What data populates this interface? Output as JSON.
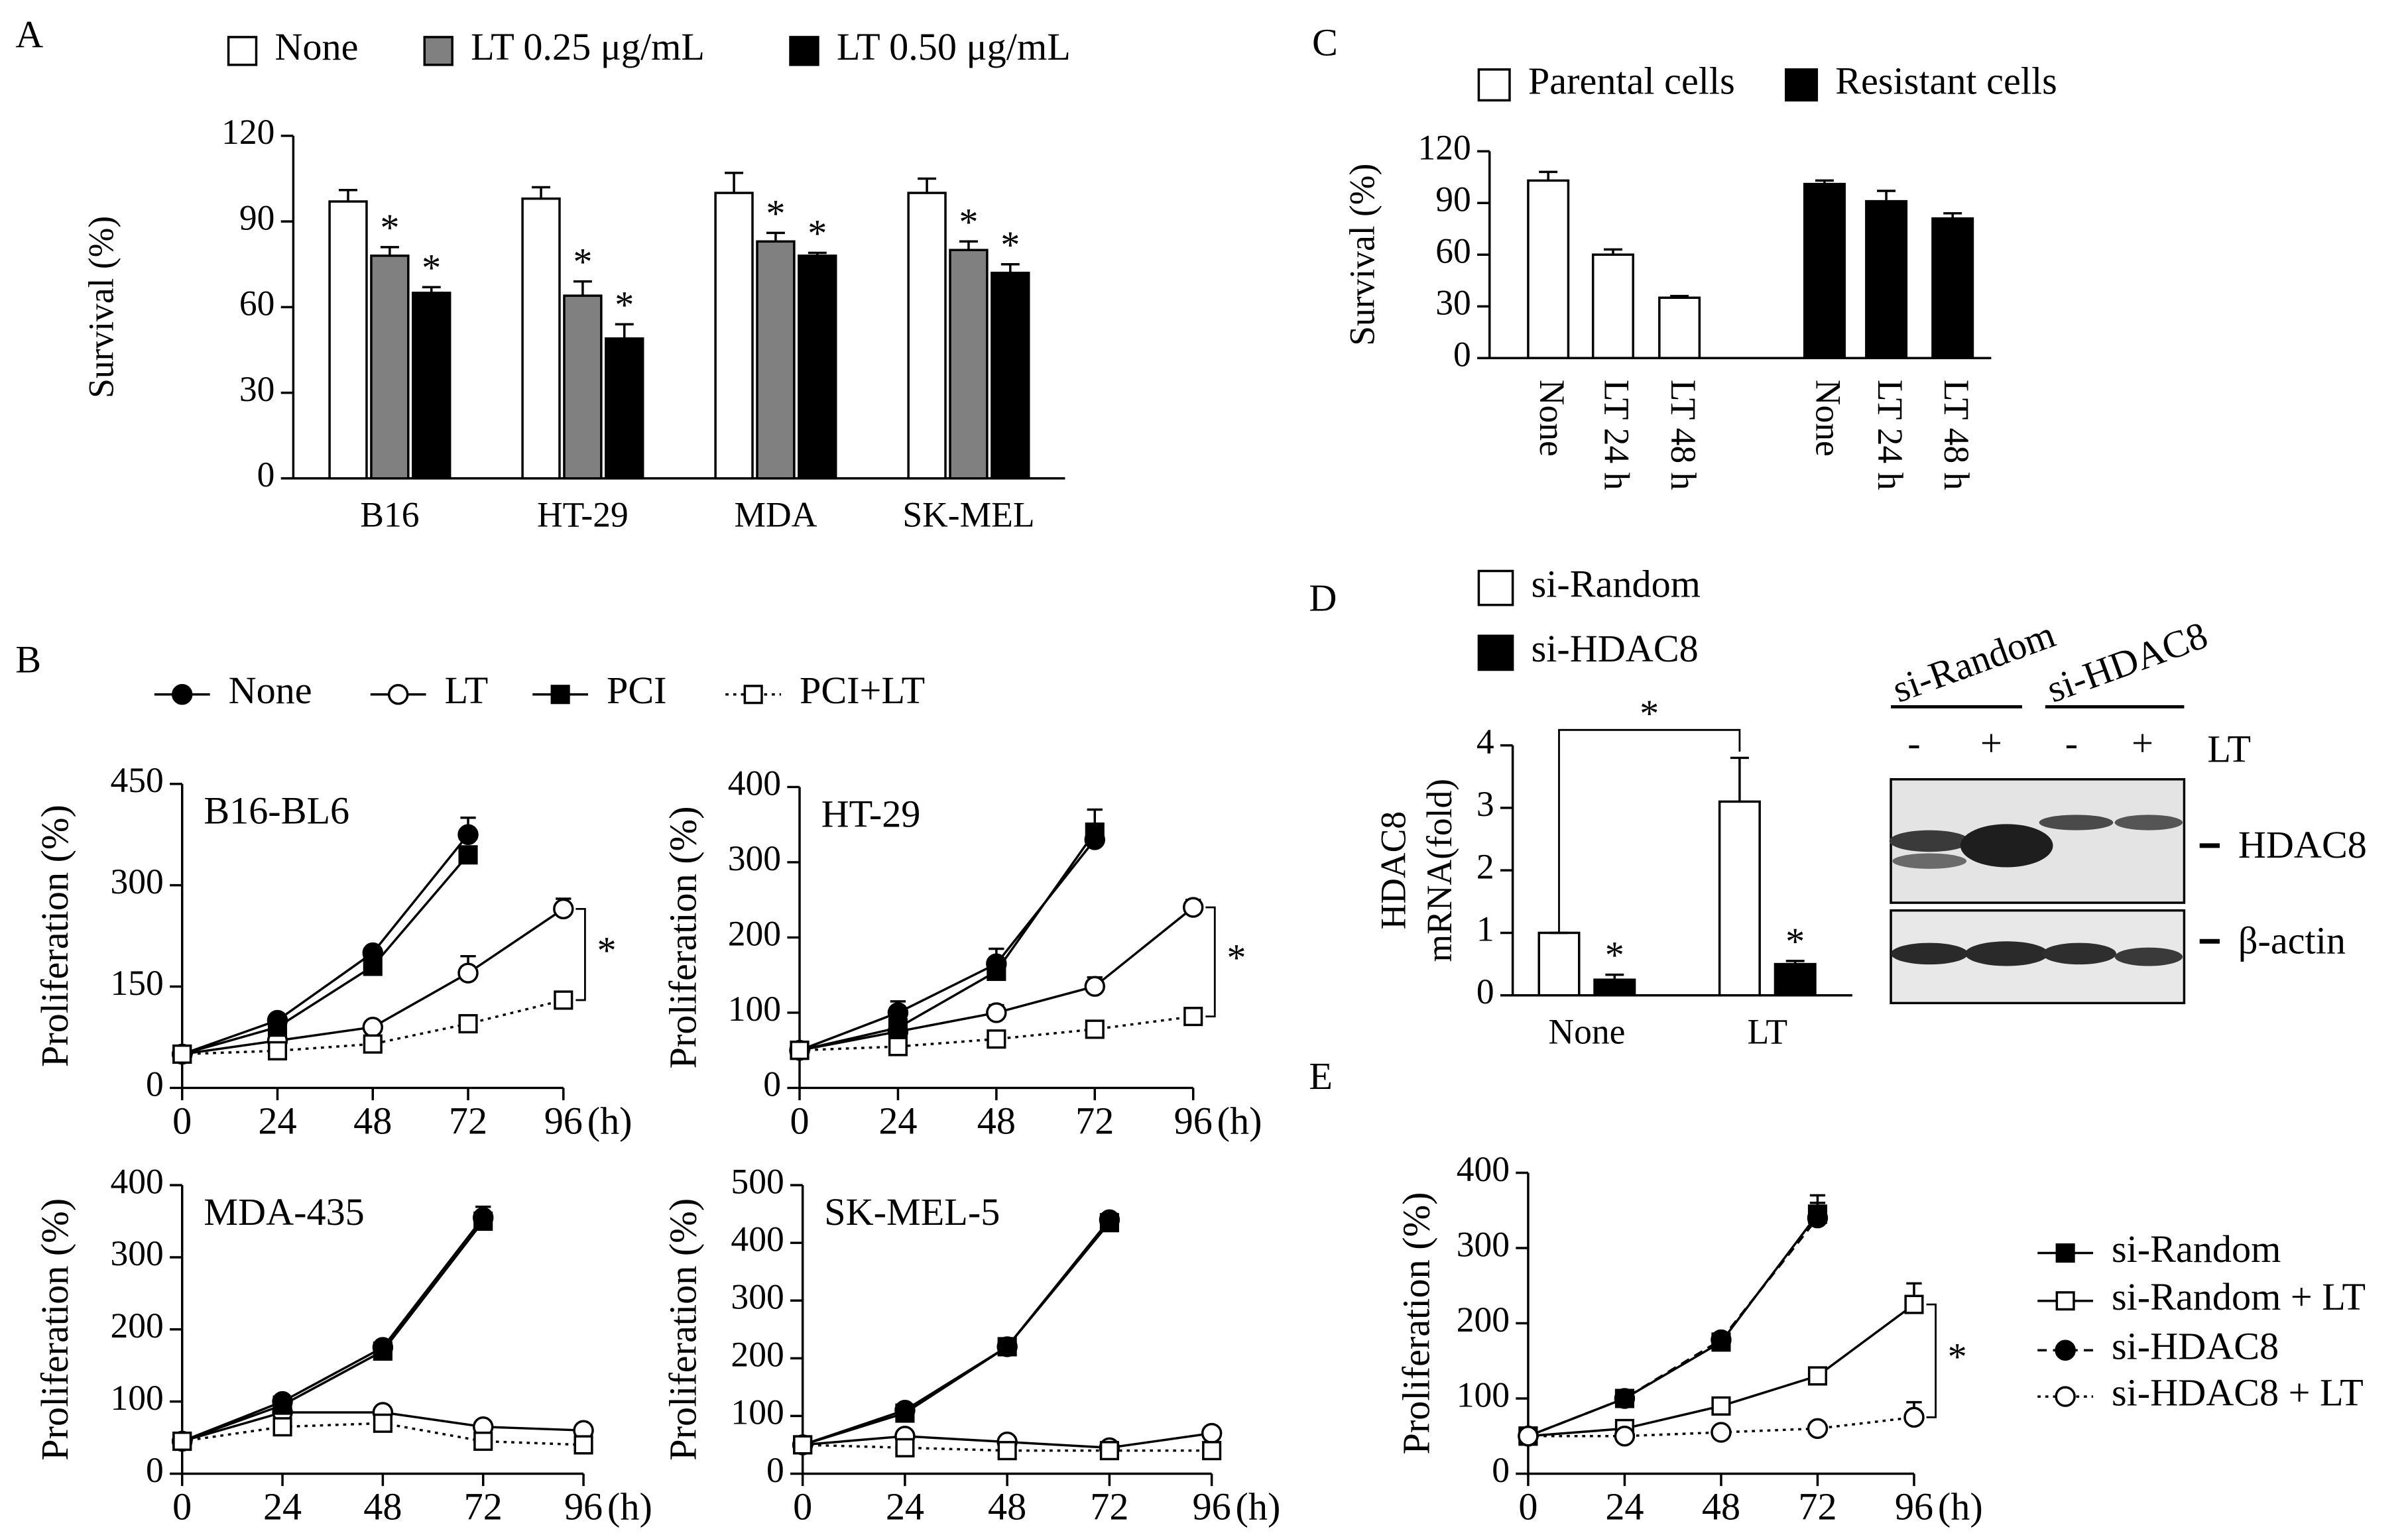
{
  "chart_data": [
    {
      "type": "bar",
      "panel": "A",
      "ylabel": "Survival (%)",
      "categories": [
        "B16",
        "HT-29",
        "MDA",
        "SK-MEL"
      ],
      "ylim": [
        0,
        120
      ],
      "yticks": [
        0,
        30,
        60,
        90,
        120
      ],
      "series": [
        {
          "name": "None",
          "color": "#ffffff",
          "values": [
            97,
            98,
            100,
            100
          ],
          "errors": [
            4,
            4,
            7,
            5
          ]
        },
        {
          "name": "LT 0.25 μg/mL",
          "color": "#808080",
          "values": [
            78,
            64,
            83,
            80
          ],
          "errors": [
            3,
            5,
            3,
            3
          ],
          "marker_label": "*"
        },
        {
          "name": "LT 0.50 μg/mL",
          "color": "#000000",
          "values": [
            65,
            49,
            78,
            72
          ],
          "errors": [
            2,
            5,
            1,
            3
          ],
          "marker_label": "*"
        }
      ]
    },
    {
      "type": "line",
      "panel": "B",
      "ylabel": "Proliferation (%)",
      "x": [
        0,
        24,
        48,
        72,
        96
      ],
      "xlim": [
        0,
        96
      ],
      "xticks": [
        0,
        24,
        48,
        72,
        96
      ],
      "x_unit": "(h)",
      "series": [
        {
          "name": "None",
          "color": "#000000",
          "marker": "circle",
          "filled": true,
          "dash": "solid"
        },
        {
          "name": "LT",
          "color": "#000000",
          "marker": "circle",
          "filled": false,
          "dash": "solid"
        },
        {
          "name": "PCI",
          "color": "#000000",
          "marker": "square",
          "filled": true,
          "dash": "solid"
        },
        {
          "name": "PCI+LT",
          "color": "#000000",
          "marker": "square",
          "filled": false,
          "dash": "dotted"
        }
      ],
      "subplots": [
        {
          "title": "B16-BL6",
          "ylim": [
            0,
            450
          ],
          "yticks": [
            0,
            150,
            300,
            450
          ],
          "significance": "*",
          "values": [
            [
              50,
              100,
              200,
              375,
              null
            ],
            [
              50,
              70,
              90,
              170,
              265
            ],
            [
              50,
              90,
              180,
              345,
              null
            ],
            [
              50,
              55,
              65,
              95,
              130
            ]
          ],
          "errors": [
            [
              0,
              5,
              5,
              25,
              null
            ],
            [
              0,
              5,
              5,
              25,
              15
            ],
            [
              0,
              5,
              5,
              5,
              null
            ],
            [
              0,
              3,
              3,
              5,
              10
            ]
          ]
        },
        {
          "title": "HT-29",
          "ylim": [
            0,
            400
          ],
          "yticks": [
            0,
            100,
            200,
            300,
            400
          ],
          "significance": "*",
          "values": [
            [
              50,
              100,
              165,
              330,
              null
            ],
            [
              50,
              75,
              100,
              135,
              240
            ],
            [
              50,
              80,
              155,
              340,
              null
            ],
            [
              50,
              55,
              65,
              78,
              95
            ]
          ],
          "errors": [
            [
              0,
              15,
              20,
              40,
              null
            ],
            [
              0,
              5,
              10,
              12,
              10
            ],
            [
              0,
              5,
              10,
              5,
              null
            ],
            [
              0,
              3,
              3,
              5,
              5
            ]
          ]
        },
        {
          "title": "MDA-435",
          "ylim": [
            0,
            400
          ],
          "yticks": [
            0,
            100,
            200,
            300,
            400
          ],
          "values": [
            [
              45,
              100,
              175,
              355,
              null
            ],
            [
              45,
              85,
              85,
              65,
              60
            ],
            [
              45,
              95,
              170,
              350,
              null
            ],
            [
              45,
              65,
              70,
              45,
              40
            ]
          ],
          "errors": [
            [
              0,
              5,
              5,
              15,
              null
            ],
            [
              0,
              3,
              3,
              3,
              3
            ],
            [
              0,
              3,
              3,
              5,
              null
            ],
            [
              0,
              3,
              3,
              3,
              3
            ]
          ]
        },
        {
          "title": "SK-MEL-5",
          "ylim": [
            0,
            500
          ],
          "yticks": [
            0,
            100,
            200,
            300,
            400,
            500
          ],
          "values": [
            [
              50,
              110,
              220,
              440,
              null
            ],
            [
              50,
              65,
              55,
              45,
              70
            ],
            [
              50,
              105,
              220,
              435,
              null
            ],
            [
              50,
              45,
              40,
              40,
              40
            ]
          ],
          "errors": [
            [
              0,
              5,
              5,
              10,
              null
            ],
            [
              0,
              3,
              3,
              3,
              5
            ],
            [
              0,
              3,
              3,
              5,
              null
            ],
            [
              0,
              3,
              3,
              3,
              3
            ]
          ]
        }
      ]
    },
    {
      "type": "bar",
      "panel": "C",
      "ylabel": "Survival (%)",
      "categories": [
        "None",
        "LT 24 h",
        "LT 48 h",
        "None",
        "LT 24 h",
        "LT 48 h"
      ],
      "ylim": [
        0,
        120
      ],
      "yticks": [
        0,
        30,
        60,
        90,
        120
      ],
      "series": [
        {
          "name": "Parental cells",
          "color": "#ffffff",
          "values": [
            103,
            60,
            35,
            null,
            null,
            null
          ],
          "errors": [
            5,
            3,
            1,
            null,
            null,
            null
          ]
        },
        {
          "name": "Resistant cells",
          "color": "#000000",
          "values": [
            null,
            null,
            null,
            101,
            91,
            81
          ],
          "errors": [
            null,
            null,
            null,
            2,
            6,
            3
          ]
        }
      ]
    },
    {
      "type": "bar",
      "panel": "D",
      "ylabel": [
        "HDAC8",
        "mRNA(fold)"
      ],
      "categories": [
        "None",
        "LT"
      ],
      "ylim": [
        0,
        4
      ],
      "yticks": [
        0,
        1,
        2,
        3,
        4
      ],
      "bracket_label": "*",
      "series": [
        {
          "name": "si-Random",
          "color": "#ffffff",
          "values": [
            1,
            3.1
          ],
          "errors": [
            0,
            0.7
          ]
        },
        {
          "name": "si-HDAC8",
          "color": "#000000",
          "values": [
            0.25,
            0.5
          ],
          "errors": [
            0.08,
            0.05
          ],
          "marker_label": "*"
        }
      ],
      "blot": {
        "groups": [
          "si-Random",
          "si-HDAC8"
        ],
        "lanes": [
          "-",
          "+",
          "-",
          "+"
        ],
        "treatment": "LT",
        "bands": [
          "HDAC8",
          "β-actin"
        ]
      }
    },
    {
      "type": "line",
      "panel": "E",
      "ylabel": "Proliferation (%)",
      "x": [
        0,
        24,
        48,
        72,
        96
      ],
      "xlim": [
        0,
        96
      ],
      "xticks": [
        0,
        24,
        48,
        72,
        96
      ],
      "x_unit": "(h)",
      "series": [
        {
          "name": "si-Random",
          "color": "#000000",
          "marker": "square",
          "filled": true,
          "dash": "solid"
        },
        {
          "name": "si-Random + LT",
          "color": "#000000",
          "marker": "square",
          "filled": false,
          "dash": "solid"
        },
        {
          "name": "si-HDAC8",
          "color": "#000000",
          "marker": "circle",
          "filled": true,
          "dash": "dashed"
        },
        {
          "name": "si-HDAC8 + LT",
          "color": "#000000",
          "marker": "circle",
          "filled": false,
          "dash": "dotted"
        }
      ],
      "subplots": [
        {
          "ylim": [
            0,
            400
          ],
          "yticks": [
            0,
            100,
            200,
            300,
            400
          ],
          "significance": "*",
          "values": [
            [
              50,
              100,
              175,
              345,
              null
            ],
            [
              50,
              60,
              90,
              130,
              225
            ],
            [
              50,
              100,
              178,
              340,
              null
            ],
            [
              50,
              50,
              55,
              60,
              75
            ]
          ],
          "errors": [
            [
              0,
              5,
              5,
              25,
              null
            ],
            [
              0,
              5,
              5,
              5,
              28
            ],
            [
              0,
              5,
              5,
              20,
              null
            ],
            [
              0,
              3,
              3,
              3,
              20
            ]
          ]
        }
      ]
    }
  ]
}
